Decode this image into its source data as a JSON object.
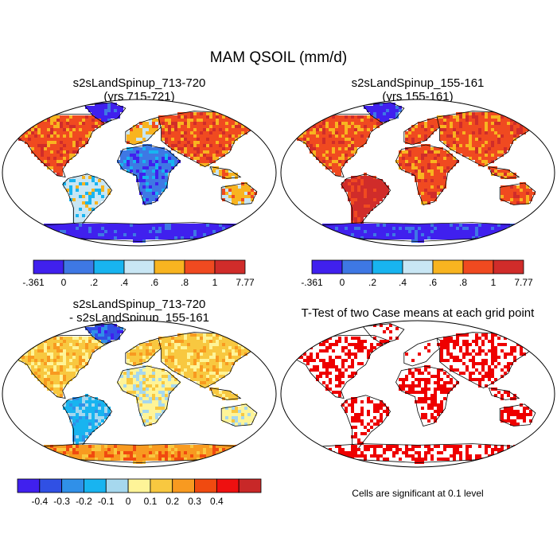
{
  "title": "MAM QSOIL (mm/d)",
  "panels": [
    {
      "id": "a",
      "title1": "s2sLandSpinup_713-720",
      "title2": "(yrs 715-721)"
    },
    {
      "id": "b",
      "title1": "s2sLandSpinup_155-161",
      "title2": "(yrs 155-161)"
    },
    {
      "id": "c",
      "title1": "s2sLandSpinup_713-720",
      "title2": "- s2sLandSpinup_155-161"
    },
    {
      "id": "d",
      "title1": "T-Test of two Case means at each grid point",
      "title2": ""
    }
  ],
  "significance_note": "Cells are significant at 0.1 level",
  "colorbar_main": {
    "colors": [
      "#4020ee",
      "#3e78e4",
      "#18b4f0",
      "#c8e6f4",
      "#f8b420",
      "#f04a20",
      "#d02c2a"
    ],
    "labels": [
      "-.361",
      "0",
      ".2",
      ".4",
      ".6",
      ".8",
      "1",
      "7.77"
    ]
  },
  "colorbar_diff": {
    "colors": [
      "#4020ee",
      "#3050e4",
      "#3090e8",
      "#18b4f0",
      "#a6d8ee",
      "#fef498",
      "#f8c840",
      "#f89a20",
      "#f04a10",
      "#ee1010",
      "#c82828"
    ],
    "labels": [
      "-0.4",
      "-0.3",
      "-0.2",
      "-0.1",
      "0",
      "0.1",
      "0.2",
      "0.3",
      "0.4"
    ]
  },
  "ttest_color": "#ee0000"
}
